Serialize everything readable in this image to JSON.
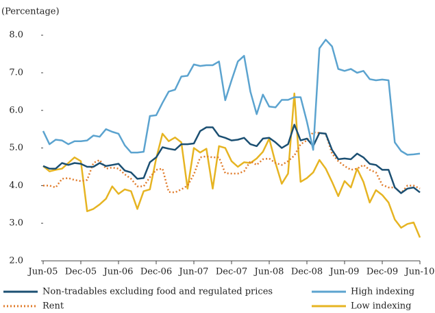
{
  "chart_data": {
    "type": "line",
    "y_label": "(Percentage)",
    "categories": [
      "Jun-05",
      null,
      null,
      null,
      null,
      null,
      "Dec-05",
      null,
      null,
      null,
      null,
      null,
      "Jun-06",
      null,
      null,
      null,
      null,
      null,
      "Dec-06",
      null,
      null,
      null,
      null,
      null,
      "Jun-07",
      null,
      null,
      null,
      null,
      null,
      "Dec-07",
      null,
      null,
      null,
      null,
      null,
      "Jun-08",
      null,
      null,
      null,
      null,
      null,
      "Dec-08",
      null,
      null,
      null,
      null,
      null,
      "Jun-09",
      null,
      null,
      null,
      null,
      null,
      "Dec-09",
      null,
      null,
      null,
      null,
      null,
      "Jun-10"
    ],
    "ylim": [
      2,
      8.2
    ],
    "yticks": [
      {
        "value": 2,
        "label": "2.0"
      },
      {
        "value": 3,
        "label": "3.0"
      },
      {
        "value": 4,
        "label": "4.0"
      },
      {
        "value": 5,
        "label": "5.0"
      },
      {
        "value": 6,
        "label": "6.0"
      },
      {
        "value": 7,
        "label": "7.0"
      },
      {
        "value": 8,
        "label": "8.0"
      }
    ],
    "grid": false,
    "series": [
      {
        "name": "Non-tradables excluding food and regulated prices",
        "color": "#1b4f72",
        "style": "solid",
        "values": [
          4.52,
          4.45,
          4.45,
          4.6,
          4.55,
          4.6,
          4.58,
          4.5,
          4.5,
          4.6,
          4.52,
          4.55,
          4.58,
          4.4,
          4.35,
          4.18,
          4.2,
          4.62,
          4.75,
          5.02,
          4.98,
          4.95,
          5.1,
          5.1,
          5.12,
          5.45,
          5.55,
          5.55,
          5.32,
          5.27,
          5.2,
          5.22,
          5.27,
          5.1,
          5.05,
          5.25,
          5.27,
          5.15,
          5.0,
          5.1,
          5.62,
          5.2,
          5.25,
          5.05,
          5.4,
          5.38,
          4.95,
          4.7,
          4.72,
          4.7,
          4.85,
          4.75,
          4.58,
          4.55,
          4.42,
          4.42,
          3.95,
          3.8,
          3.92,
          3.95,
          3.82
        ]
      },
      {
        "name": "High indexing",
        "color": "#5ba3cf",
        "style": "solid",
        "values": [
          5.45,
          5.1,
          5.22,
          5.2,
          5.1,
          5.18,
          5.18,
          5.2,
          5.33,
          5.3,
          5.5,
          5.43,
          5.38,
          5.07,
          4.88,
          4.88,
          4.9,
          5.85,
          5.87,
          6.2,
          6.5,
          6.55,
          6.9,
          6.92,
          7.22,
          7.18,
          7.2,
          7.2,
          7.3,
          6.27,
          6.8,
          7.3,
          7.45,
          6.5,
          5.9,
          6.42,
          6.1,
          6.08,
          6.28,
          6.28,
          6.35,
          6.35,
          5.7,
          4.95,
          7.65,
          7.88,
          7.7,
          7.1,
          7.05,
          7.1,
          7.0,
          7.05,
          6.83,
          6.8,
          6.82,
          6.8,
          5.15,
          4.92,
          4.82,
          4.83,
          4.85
        ]
      },
      {
        "name": "Rent",
        "color": "#e07b2a",
        "style": "dotted",
        "values": [
          4.0,
          4.0,
          3.95,
          4.18,
          4.2,
          4.15,
          4.12,
          4.15,
          4.6,
          4.68,
          4.45,
          4.48,
          4.45,
          4.3,
          4.18,
          3.98,
          3.98,
          4.22,
          4.42,
          4.45,
          3.83,
          3.82,
          3.9,
          4.0,
          4.3,
          4.75,
          4.78,
          4.75,
          4.75,
          4.33,
          4.32,
          4.32,
          4.38,
          4.65,
          4.55,
          4.7,
          4.72,
          4.6,
          4.55,
          4.65,
          4.8,
          5.1,
          5.2,
          5.42,
          5.4,
          5.38,
          4.85,
          4.65,
          4.52,
          4.42,
          4.45,
          4.55,
          4.42,
          4.35,
          4.02,
          3.95,
          3.95,
          3.8,
          4.0,
          4.0,
          3.92
        ]
      },
      {
        "name": "Low indexing",
        "color": "#e6b422",
        "style": "solid",
        "values": [
          4.52,
          4.38,
          4.42,
          4.45,
          4.6,
          4.75,
          4.65,
          3.32,
          3.38,
          3.5,
          3.65,
          3.98,
          3.78,
          3.9,
          3.85,
          3.38,
          3.85,
          3.9,
          4.72,
          5.38,
          5.18,
          5.28,
          5.15,
          3.92,
          5.0,
          4.88,
          4.98,
          3.92,
          5.05,
          5.0,
          4.65,
          4.5,
          4.62,
          4.6,
          4.72,
          4.9,
          5.25,
          4.6,
          4.05,
          4.32,
          6.45,
          4.1,
          4.2,
          4.35,
          4.68,
          4.45,
          4.1,
          3.72,
          4.12,
          3.95,
          4.45,
          4.1,
          3.55,
          3.88,
          3.75,
          3.55,
          3.1,
          2.88,
          2.98,
          3.02,
          2.62
        ]
      }
    ]
  }
}
